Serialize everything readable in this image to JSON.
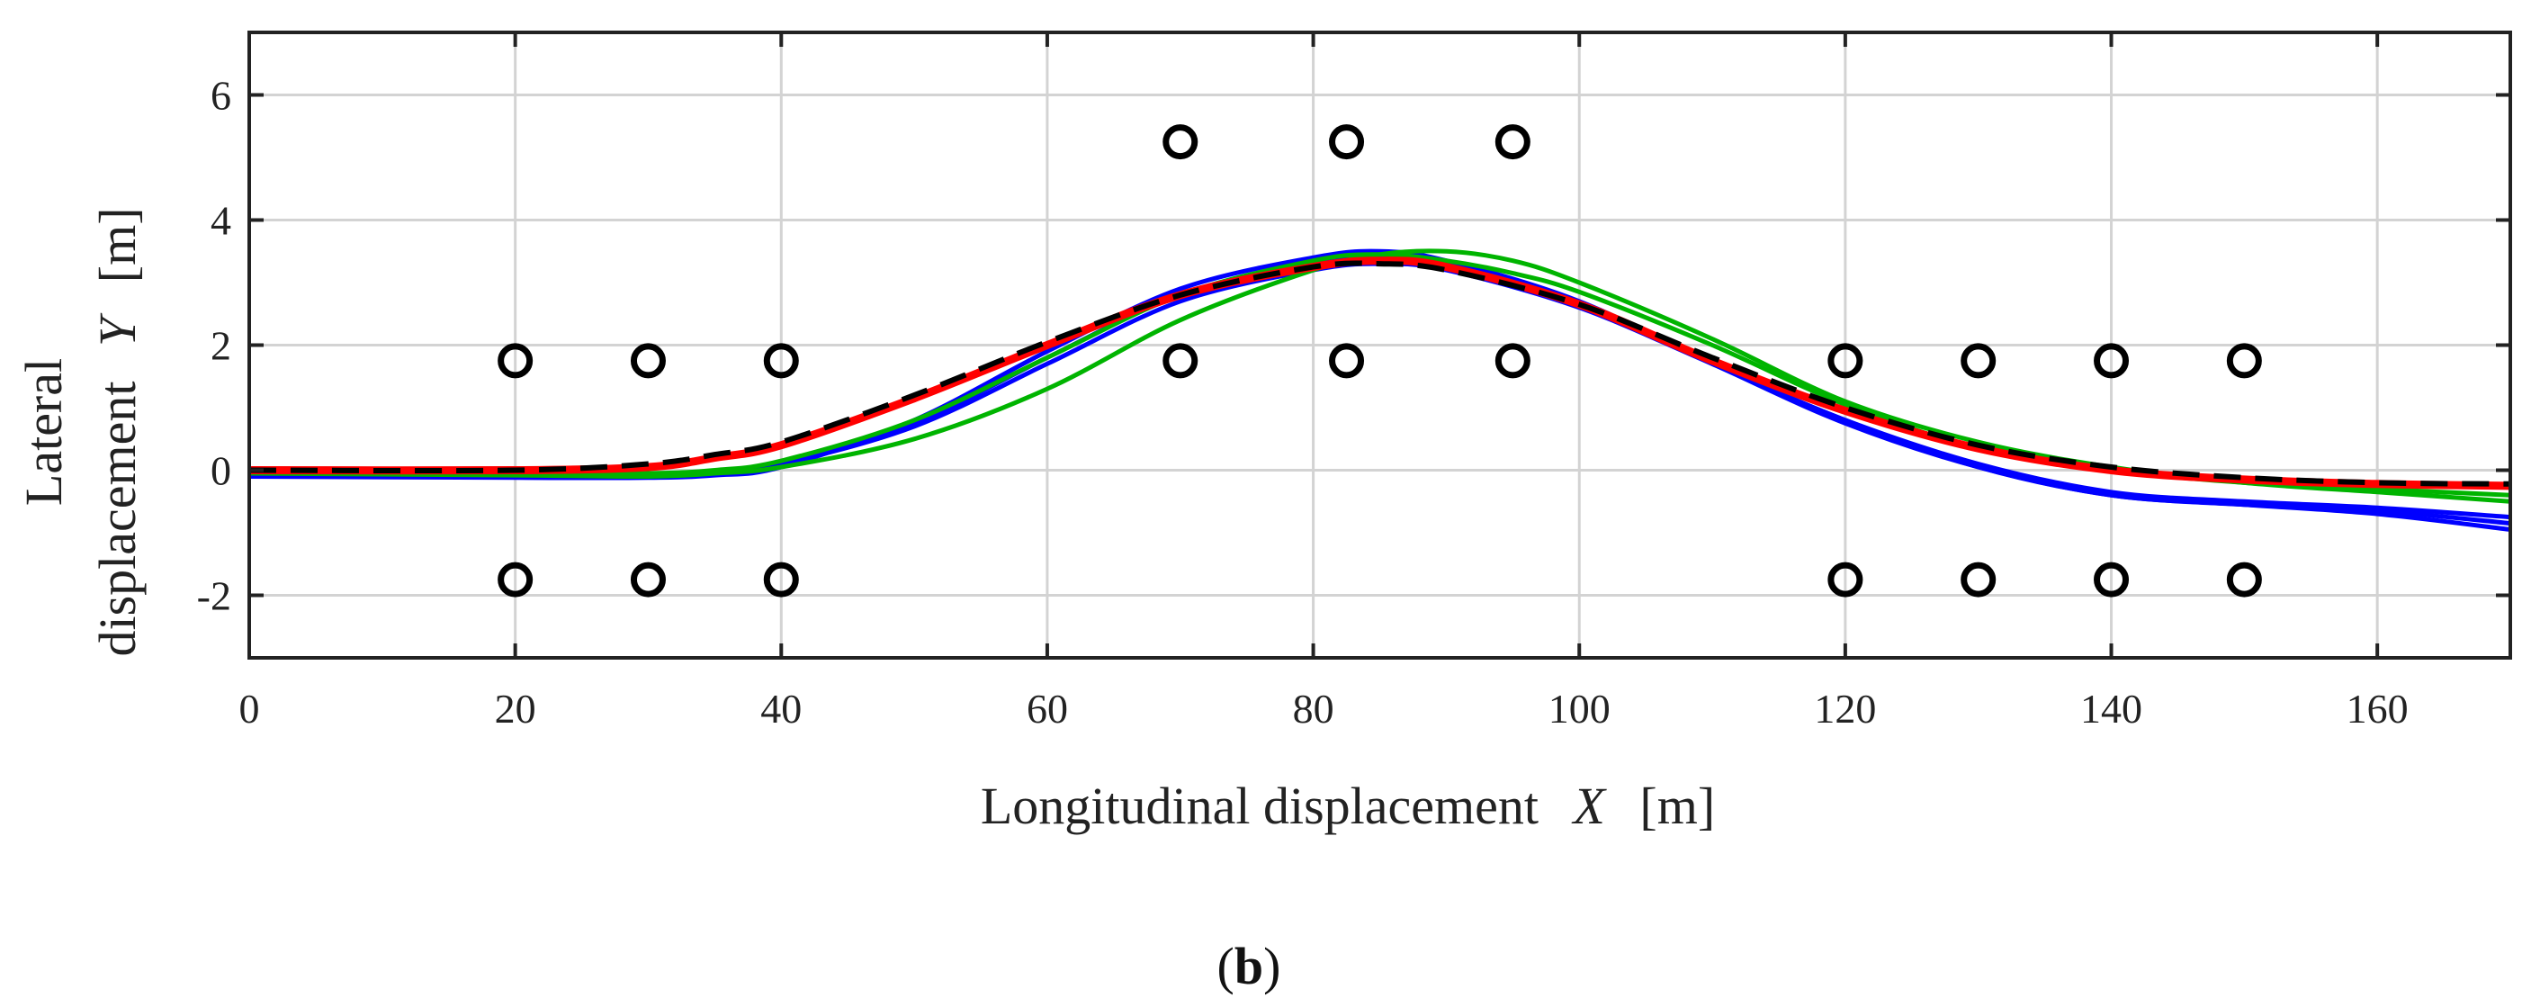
{
  "chart_data": {
    "type": "line",
    "title": "",
    "xlabel": {
      "prefix": "Longitudinal displacement",
      "symbol": "X",
      "unit": "[m]"
    },
    "ylabel": {
      "line1": "Lateral",
      "prefix": "displacement",
      "symbol": "Y",
      "unit": "[m]"
    },
    "xlim": [
      0,
      170
    ],
    "ylim": [
      -3,
      7
    ],
    "xticks": [
      0,
      20,
      40,
      60,
      80,
      100,
      120,
      140,
      160
    ],
    "yticks": [
      -2,
      0,
      2,
      4,
      6
    ],
    "grid": true,
    "caption": {
      "open": "(",
      "letter": "b",
      "close": ")"
    },
    "colors": {
      "blue": "#0000ff",
      "green": "#00b400",
      "red": "#ff0000",
      "black": "#000000",
      "marker": "#000000",
      "grid": "#d3d3d3",
      "axis": "#222222"
    },
    "markers": [
      {
        "x": 20,
        "y": 1.75
      },
      {
        "x": 30,
        "y": 1.75
      },
      {
        "x": 40,
        "y": 1.75
      },
      {
        "x": 70,
        "y": 1.75
      },
      {
        "x": 82.5,
        "y": 1.75
      },
      {
        "x": 95,
        "y": 1.75
      },
      {
        "x": 120,
        "y": 1.75
      },
      {
        "x": 130,
        "y": 1.75
      },
      {
        "x": 140,
        "y": 1.75
      },
      {
        "x": 150,
        "y": 1.75
      },
      {
        "x": 20,
        "y": -1.75
      },
      {
        "x": 30,
        "y": -1.75
      },
      {
        "x": 40,
        "y": -1.75
      },
      {
        "x": 120,
        "y": -1.75
      },
      {
        "x": 130,
        "y": -1.75
      },
      {
        "x": 140,
        "y": -1.75
      },
      {
        "x": 150,
        "y": -1.75
      },
      {
        "x": 70,
        "y": 5.25
      },
      {
        "x": 82.5,
        "y": 5.25
      },
      {
        "x": 95,
        "y": 5.25
      }
    ],
    "series": [
      {
        "name": "blue-1",
        "color": "blue",
        "style": "solid",
        "x": [
          0,
          20,
          30,
          35,
          40,
          50,
          60,
          70,
          80,
          85,
          90,
          100,
          110,
          120,
          130,
          140,
          150,
          160,
          170
        ],
        "y": [
          -0.1,
          -0.12,
          -0.12,
          -0.08,
          0.05,
          0.8,
          1.9,
          2.9,
          3.4,
          3.5,
          3.35,
          2.7,
          1.7,
          0.8,
          0.05,
          -0.4,
          -0.55,
          -0.7,
          -0.95
        ]
      },
      {
        "name": "blue-2",
        "color": "blue",
        "style": "solid",
        "x": [
          0,
          20,
          30,
          35,
          40,
          50,
          60,
          70,
          80,
          85,
          90,
          100,
          110,
          120,
          130,
          140,
          150,
          160,
          170
        ],
        "y": [
          -0.1,
          -0.1,
          -0.08,
          -0.02,
          0.1,
          0.7,
          1.7,
          2.7,
          3.2,
          3.3,
          3.2,
          2.6,
          1.7,
          0.8,
          0.1,
          -0.35,
          -0.5,
          -0.6,
          -0.75
        ]
      },
      {
        "name": "blue-3",
        "color": "blue",
        "style": "solid",
        "x": [
          0,
          20,
          30,
          35,
          40,
          50,
          60,
          70,
          80,
          85,
          90,
          100,
          110,
          120,
          130,
          140,
          150,
          160,
          170
        ],
        "y": [
          -0.1,
          -0.1,
          -0.1,
          -0.05,
          0.08,
          0.75,
          1.8,
          2.8,
          3.3,
          3.4,
          3.3,
          2.65,
          1.7,
          0.75,
          0.05,
          -0.4,
          -0.55,
          -0.65,
          -0.85
        ]
      },
      {
        "name": "green-1",
        "color": "green",
        "style": "solid",
        "x": [
          0,
          20,
          30,
          35,
          40,
          50,
          60,
          70,
          80,
          85,
          90,
          95,
          100,
          110,
          120,
          130,
          140,
          150,
          160,
          170
        ],
        "y": [
          -0.05,
          -0.08,
          -0.1,
          -0.05,
          0.05,
          0.5,
          1.3,
          2.4,
          3.2,
          3.45,
          3.5,
          3.35,
          3.0,
          2.1,
          1.1,
          0.45,
          0.05,
          -0.2,
          -0.35,
          -0.5
        ]
      },
      {
        "name": "green-2",
        "color": "green",
        "style": "solid",
        "x": [
          0,
          20,
          30,
          35,
          40,
          50,
          60,
          70,
          80,
          85,
          90,
          95,
          100,
          110,
          120,
          130,
          140,
          150,
          160,
          170
        ],
        "y": [
          -0.05,
          -0.05,
          -0.05,
          0.0,
          0.15,
          0.8,
          1.8,
          2.8,
          3.35,
          3.45,
          3.35,
          3.15,
          2.85,
          2.0,
          1.05,
          0.35,
          0.0,
          -0.2,
          -0.3,
          -0.4
        ]
      },
      {
        "name": "red",
        "color": "red",
        "style": "solid",
        "x": [
          0,
          20,
          30,
          35,
          40,
          50,
          60,
          70,
          80,
          85,
          90,
          100,
          110,
          120,
          130,
          140,
          150,
          160,
          170
        ],
        "y": [
          0,
          0,
          0.05,
          0.2,
          0.4,
          1.15,
          2.0,
          2.8,
          3.25,
          3.35,
          3.25,
          2.65,
          1.75,
          0.95,
          0.35,
          0.0,
          -0.15,
          -0.22,
          -0.25
        ]
      },
      {
        "name": "black-dashed",
        "color": "black",
        "style": "dashed",
        "x": [
          0,
          20,
          30,
          35,
          40,
          50,
          60,
          70,
          80,
          85,
          90,
          100,
          110,
          120,
          130,
          140,
          150,
          160,
          170
        ],
        "y": [
          0,
          0,
          0.1,
          0.25,
          0.45,
          1.2,
          2.05,
          2.8,
          3.25,
          3.3,
          3.2,
          2.65,
          1.8,
          1.0,
          0.4,
          0.05,
          -0.12,
          -0.2,
          -0.22
        ]
      }
    ]
  }
}
